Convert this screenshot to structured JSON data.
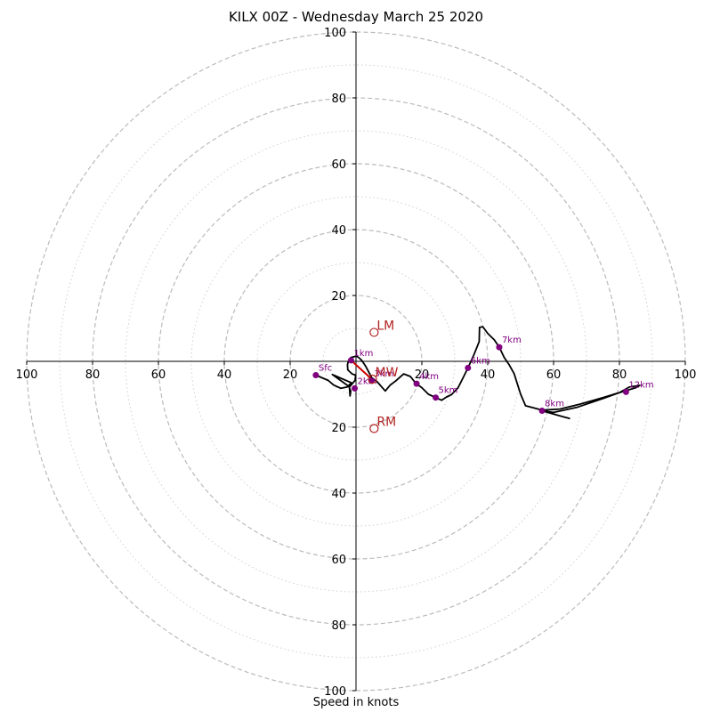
{
  "chart_data": {
    "type": "hodograph",
    "title": "KILX 00Z - Wednesday March 25 2020",
    "xlabel": "Speed in knots",
    "rmax": 100,
    "ring_major": [
      20,
      40,
      60,
      80,
      100
    ],
    "ring_minor": [
      10,
      30,
      50,
      70,
      90
    ],
    "x_ticks": [
      {
        "v": -100,
        "label": "100"
      },
      {
        "v": -80,
        "label": "80"
      },
      {
        "v": -60,
        "label": "60"
      },
      {
        "v": -40,
        "label": "40"
      },
      {
        "v": -20,
        "label": "20"
      },
      {
        "v": 20,
        "label": "20"
      },
      {
        "v": 40,
        "label": "40"
      },
      {
        "v": 60,
        "label": "60"
      },
      {
        "v": 80,
        "label": "80"
      },
      {
        "v": 100,
        "label": "100"
      }
    ],
    "y_ticks": [
      {
        "v": 100,
        "label": "100"
      },
      {
        "v": 80,
        "label": "80"
      },
      {
        "v": 60,
        "label": "60"
      },
      {
        "v": 40,
        "label": "40"
      },
      {
        "v": 20,
        "label": "20"
      },
      {
        "v": -20,
        "label": "20"
      },
      {
        "v": -40,
        "label": "40"
      },
      {
        "v": -60,
        "label": "60"
      },
      {
        "v": -80,
        "label": "80"
      },
      {
        "v": -100,
        "label": "100"
      }
    ],
    "trace": [
      [
        -12.2,
        -4.2
      ],
      [
        -8.4,
        -5.8
      ],
      [
        -6.8,
        -7.2
      ],
      [
        -4.6,
        -8.2
      ],
      [
        -2.7,
        -7.8
      ],
      [
        -1.4,
        -6.5
      ],
      [
        -7.2,
        -4.0
      ],
      [
        -2.2,
        -7.6
      ],
      [
        -1.6,
        -9.0
      ],
      [
        -1.8,
        -10.5
      ],
      [
        -2.0,
        -7.8
      ],
      [
        -0.8,
        -6.4
      ],
      [
        -0.3,
        -5.8
      ],
      [
        -0.1,
        -4.2
      ],
      [
        -1.2,
        -3.8
      ],
      [
        -2.5,
        -2.6
      ],
      [
        -2.6,
        -1.0
      ],
      [
        -2.2,
        0.4
      ],
      [
        -1.5,
        1.2
      ],
      [
        0.2,
        1.6
      ],
      [
        1.0,
        1.0
      ],
      [
        1.8,
        0.2
      ],
      [
        3.0,
        -1.6
      ],
      [
        4.0,
        -3.5
      ],
      [
        4.8,
        -5.0
      ],
      [
        6.4,
        -6.2
      ],
      [
        8.9,
        -9.0
      ],
      [
        10.4,
        -7.2
      ],
      [
        12.0,
        -6.0
      ],
      [
        14.5,
        -3.8
      ],
      [
        16.5,
        -4.6
      ],
      [
        18.2,
        -6.7
      ],
      [
        20.0,
        -8.0
      ],
      [
        22.0,
        -10.0
      ],
      [
        24.2,
        -11.0
      ],
      [
        26.0,
        -11.8
      ],
      [
        27.5,
        -10.8
      ],
      [
        29.0,
        -10.1
      ],
      [
        31.0,
        -8.0
      ],
      [
        32.5,
        -5.0
      ],
      [
        34.0,
        -2.0
      ],
      [
        35.8,
        2.0
      ],
      [
        37.4,
        6.0
      ],
      [
        37.5,
        10.3
      ],
      [
        38.5,
        10.5
      ],
      [
        40.0,
        8.5
      ],
      [
        42.0,
        6.5
      ],
      [
        43.5,
        4.3
      ],
      [
        45.0,
        1.2
      ],
      [
        46.5,
        -1.0
      ],
      [
        48.0,
        -3.7
      ],
      [
        50.0,
        -10.0
      ],
      [
        51.5,
        -13.5
      ],
      [
        56.5,
        -14.8
      ],
      [
        62.0,
        -14.5
      ],
      [
        68.0,
        -13.0
      ],
      [
        75.0,
        -11.0
      ],
      [
        80.0,
        -9.5
      ],
      [
        85.0,
        -8.0
      ],
      [
        86.2,
        -7.3
      ],
      [
        83.0,
        -7.8
      ],
      [
        80.0,
        -9.5
      ],
      [
        75.0,
        -11.3
      ],
      [
        67.0,
        -14.0
      ],
      [
        60.0,
        -15.5
      ],
      [
        56.5,
        -15.0
      ],
      [
        60.0,
        -16.0
      ],
      [
        65.0,
        -17.4
      ]
    ],
    "levels": [
      {
        "label": "Sfc",
        "u": -12.2,
        "v": -4.2
      },
      {
        "label": "1km",
        "u": -1.5,
        "v": 0.3
      },
      {
        "label": "2km",
        "u": -0.4,
        "v": -8.2
      },
      {
        "label": "3km",
        "u": 4.7,
        "v": -5.9
      },
      {
        "label": "4km",
        "u": 18.4,
        "v": -6.8
      },
      {
        "label": "5km",
        "u": 24.2,
        "v": -11.0
      },
      {
        "label": "6km",
        "u": 34.0,
        "v": -2.0
      },
      {
        "label": "7km",
        "u": 43.5,
        "v": 4.3
      },
      {
        "label": "8km",
        "u": 56.5,
        "v": -15.0
      },
      {
        "label": "12km",
        "u": 82.0,
        "v": -9.3
      }
    ],
    "shear_vector": {
      "from": [
        -1.5,
        0.3
      ],
      "to": [
        4.9,
        -5.5
      ]
    },
    "markers": [
      {
        "label": "LM",
        "u": 5.5,
        "v": 8.8
      },
      {
        "label": "MW",
        "u": 5.0,
        "v": -5.4
      },
      {
        "label": "RM",
        "u": 5.5,
        "v": -20.4
      }
    ],
    "colors": {
      "trace": "#000000",
      "level_points": "#800080",
      "markers": "#b22222",
      "shear": "#cc0000",
      "grid": "#bbbbbb",
      "axes": "#000000"
    }
  }
}
